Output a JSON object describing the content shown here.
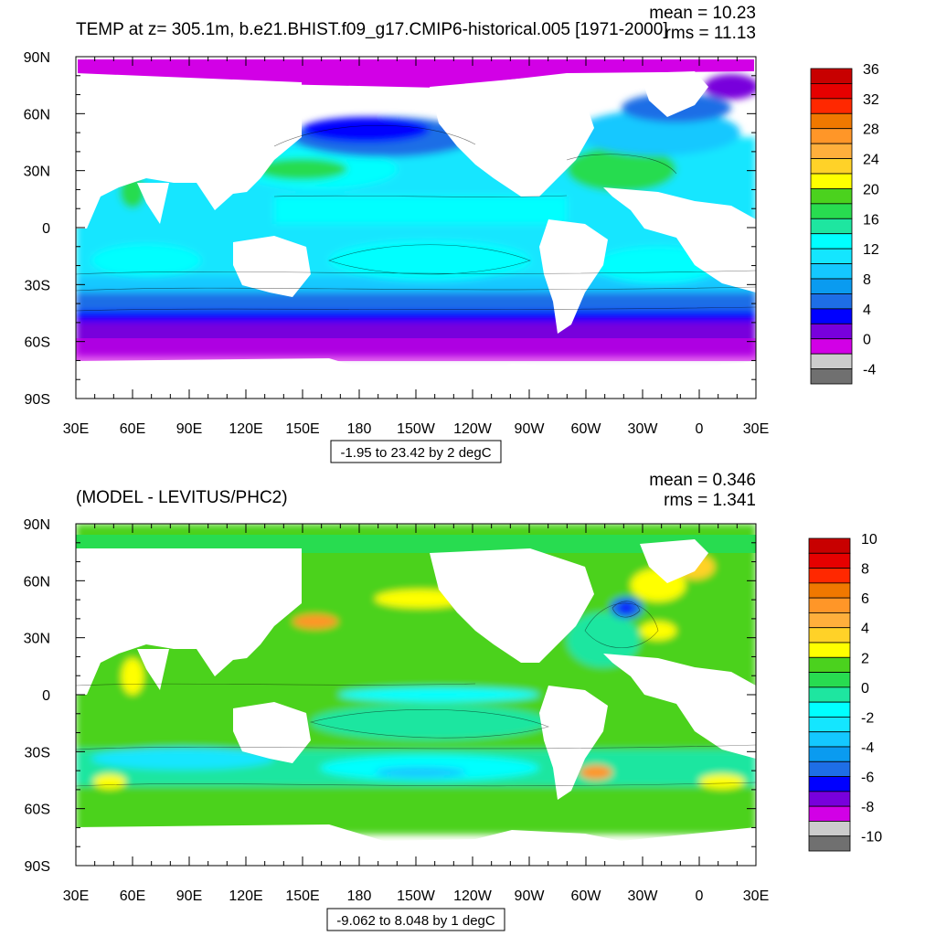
{
  "panels": [
    {
      "title": "TEMP at z= 305.1m, b.e21.BHIST.f09_g17.CMIP6-historical.005 [1971-2000]",
      "mean_text": "mean = 10.23",
      "rms_text": "rms = 11.13",
      "range_text": "-1.95 to 23.42 by 2 degC",
      "x_ticks": [
        "30E",
        "60E",
        "90E",
        "120E",
        "150E",
        "180",
        "150W",
        "120W",
        "90W",
        "60W",
        "30W",
        "0",
        "30E"
      ],
      "y_ticks": [
        "90N",
        "60N",
        "30N",
        "0",
        "30S",
        "60S",
        "90S"
      ],
      "colorbar": {
        "labels": [
          "36",
          "32",
          "28",
          "24",
          "20",
          "16",
          "12",
          "8",
          "4",
          "0",
          "-4"
        ],
        "colors": [
          "#c80000",
          "#e60000",
          "#ff2800",
          "#f07800",
          "#ff9628",
          "#ffaf3c",
          "#ffd228",
          "#ffff00",
          "#4bd21e",
          "#28dc50",
          "#1ee6a0",
          "#00ffff",
          "#14e6ff",
          "#14c8ff",
          "#0a9bf0",
          "#1e6ee6",
          "#0000ff",
          "#7800dc",
          "#d200e6",
          "#cccccc",
          "#707070"
        ]
      }
    },
    {
      "title": "(MODEL - LEVITUS/PHC2)",
      "mean_text": "mean = 0.346",
      "rms_text": "rms = 1.341",
      "range_text": "-9.062 to 8.048 by 1 degC",
      "x_ticks": [
        "30E",
        "60E",
        "90E",
        "120E",
        "150E",
        "180",
        "150W",
        "120W",
        "90W",
        "60W",
        "30W",
        "0",
        "30E"
      ],
      "y_ticks": [
        "90N",
        "60N",
        "30N",
        "0",
        "30S",
        "60S",
        "90S"
      ],
      "colorbar": {
        "labels": [
          "10",
          "8",
          "6",
          "4",
          "2",
          "0",
          "-2",
          "-4",
          "-6",
          "-8",
          "-10"
        ],
        "colors": [
          "#c80000",
          "#e60000",
          "#ff2800",
          "#f07800",
          "#ff9628",
          "#ffaf3c",
          "#ffd228",
          "#ffff00",
          "#4bd21e",
          "#28dc50",
          "#1ee6a0",
          "#00ffff",
          "#14e6ff",
          "#14c8ff",
          "#0a9bf0",
          "#1e6ee6",
          "#0000ff",
          "#7800dc",
          "#d200e6",
          "#cccccc",
          "#707070"
        ]
      }
    }
  ],
  "chart_data": [
    {
      "type": "heatmap",
      "title": "TEMP at z= 305.1m, b.e21.BHIST.f09_g17.CMIP6-historical.005 [1971-2000]",
      "variable": "TEMP",
      "units": "degC",
      "mean": 10.23,
      "rms": 11.13,
      "data_min": -1.95,
      "data_max": 23.42,
      "contour_interval": 2,
      "lon_range": [
        30,
        390
      ],
      "lat_range": [
        -90,
        90
      ],
      "colorbar_levels": [
        -4,
        -2,
        0,
        2,
        4,
        6,
        8,
        10,
        12,
        14,
        16,
        18,
        20,
        22,
        24,
        26,
        28,
        30,
        32,
        34,
        36
      ],
      "colorbar_labels": [
        "36",
        "32",
        "28",
        "24",
        "20",
        "16",
        "12",
        "8",
        "4",
        "0",
        "-4"
      ]
    },
    {
      "type": "heatmap",
      "title": "(MODEL - LEVITUS/PHC2)",
      "units": "degC",
      "mean": 0.346,
      "rms": 1.341,
      "data_min": -9.062,
      "data_max": 8.048,
      "contour_interval": 1,
      "lon_range": [
        30,
        390
      ],
      "lat_range": [
        -90,
        90
      ],
      "colorbar_levels": [
        -10,
        -9,
        -8,
        -7,
        -6,
        -5,
        -4,
        -3,
        -2,
        -1,
        0,
        1,
        2,
        3,
        4,
        5,
        6,
        7,
        8,
        9,
        10
      ],
      "colorbar_labels": [
        "10",
        "8",
        "6",
        "4",
        "2",
        "0",
        "-2",
        "-4",
        "-6",
        "-8",
        "-10"
      ]
    }
  ]
}
